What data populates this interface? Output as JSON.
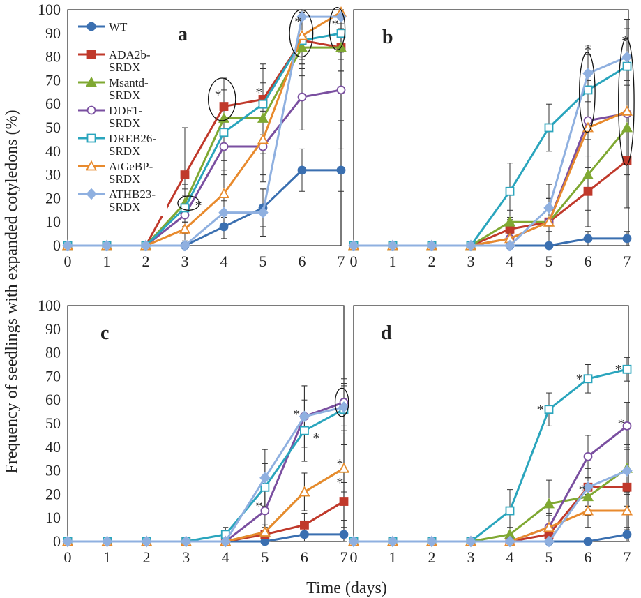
{
  "figure": {
    "ylabel": "Frequency of seedlings with expanded cotyledons (%)",
    "xlabel": "Time (days)"
  },
  "legend": [
    {
      "name": "WT",
      "lines": [
        "WT"
      ],
      "color": "#3a6fb0",
      "marker": "circle-filled"
    },
    {
      "name": "ADA2b-SRDX",
      "lines": [
        "ADA2b-",
        "SRDX"
      ],
      "color": "#c0392b",
      "marker": "square-filled"
    },
    {
      "name": "Msantd-SRDX",
      "lines": [
        "Msantd-",
        "SRDX"
      ],
      "color": "#7fa832",
      "marker": "triangle-filled"
    },
    {
      "name": "DDF1-SRDX",
      "lines": [
        "DDF1-",
        "SRDX"
      ],
      "color": "#7a4fa0",
      "marker": "circle-open"
    },
    {
      "name": "DREB26-SRDX",
      "lines": [
        "DREB26-",
        "SRDX"
      ],
      "color": "#2aa5bd",
      "marker": "square-open"
    },
    {
      "name": "AtGeBP-SRDX",
      "lines": [
        "AtGeBP-",
        "SRDX"
      ],
      "color": "#e88a2d",
      "marker": "triangle-open"
    },
    {
      "name": "ATHB23-SRDX",
      "lines": [
        "ATHB23-",
        "SRDX"
      ],
      "color": "#8fb0e0",
      "marker": "diamond-filled"
    }
  ],
  "chart_data": [
    {
      "panel": "a",
      "type": "line",
      "x": [
        0,
        1,
        2,
        3,
        4,
        5,
        6,
        7
      ],
      "xticks": [
        "0",
        "1",
        "2",
        "3",
        "4",
        "5",
        "6",
        "7"
      ],
      "yticks": [
        "0",
        "10",
        "20",
        "30",
        "40",
        "50",
        "60",
        "70",
        "80",
        "90",
        "100"
      ],
      "ylim": [
        0,
        100
      ],
      "series": [
        {
          "name": "WT",
          "values": [
            0,
            0,
            0,
            0,
            8,
            16,
            32,
            32
          ],
          "err": [
            0,
            0,
            0,
            0,
            5,
            8,
            9,
            9
          ]
        },
        {
          "name": "ADA2b-SRDX",
          "values": [
            0,
            0,
            0,
            30,
            59,
            62,
            87,
            84
          ],
          "err": [
            0,
            0,
            0,
            20,
            12,
            15,
            12,
            10
          ]
        },
        {
          "name": "Msantd-SRDX",
          "values": [
            0,
            0,
            0,
            18,
            54,
            54,
            84,
            84
          ],
          "err": [
            0,
            0,
            0,
            8,
            12,
            15,
            12,
            10
          ]
        },
        {
          "name": "DDF1-SRDX",
          "values": [
            0,
            0,
            0,
            13,
            42,
            42,
            63,
            66
          ],
          "err": [
            0,
            0,
            0,
            8,
            12,
            15,
            14,
            13
          ]
        },
        {
          "name": "DREB26-SRDX",
          "values": [
            0,
            0,
            0,
            16,
            48,
            60,
            87,
            90
          ],
          "err": [
            0,
            0,
            0,
            8,
            12,
            15,
            10,
            8
          ]
        },
        {
          "name": "AtGeBP-SRDX",
          "values": [
            0,
            0,
            0,
            7,
            22,
            45,
            89,
            99
          ],
          "err": [
            0,
            0,
            0,
            5,
            10,
            15,
            10,
            5
          ]
        },
        {
          "name": "ATHB23-SRDX",
          "values": [
            0,
            0,
            0,
            0,
            14,
            14,
            97,
            97
          ],
          "err": [
            0,
            0,
            0,
            0,
            5,
            10,
            8,
            5
          ]
        }
      ],
      "annotations": [
        {
          "text": "*",
          "x": 3.35,
          "y": 18
        },
        {
          "text": "*",
          "x": 3.85,
          "y": 65
        },
        {
          "text": "*",
          "x": 4.9,
          "y": 66
        },
        {
          "text": "*",
          "x": 5.9,
          "y": 96
        },
        {
          "text": "*",
          "x": 6.85,
          "y": 95
        }
      ],
      "ellipses": [
        {
          "cx": 3.1,
          "cy": 18,
          "rx": 0.28,
          "ry": 3
        },
        {
          "cx": 3.95,
          "cy": 62,
          "rx": 0.35,
          "ry": 9
        },
        {
          "cx": 5.98,
          "cy": 90,
          "rx": 0.3,
          "ry": 10
        },
        {
          "cx": 6.9,
          "cy": 92,
          "rx": 0.2,
          "ry": 9
        }
      ]
    },
    {
      "panel": "b",
      "type": "line",
      "x": [
        0,
        1,
        2,
        3,
        4,
        5,
        6,
        7
      ],
      "xticks": [
        "0",
        "1",
        "2",
        "3",
        "4",
        "5",
        "6",
        "7"
      ],
      "ylim": [
        0,
        100
      ],
      "series": [
        {
          "name": "WT",
          "values": [
            0,
            0,
            0,
            0,
            0,
            0,
            3,
            3
          ],
          "err": [
            0,
            0,
            0,
            0,
            0,
            0,
            3,
            3
          ]
        },
        {
          "name": "ADA2b-SRDX",
          "values": [
            0,
            0,
            0,
            0,
            7,
            10,
            23,
            36
          ],
          "err": [
            0,
            0,
            0,
            0,
            5,
            10,
            15,
            20
          ]
        },
        {
          "name": "Msantd-SRDX",
          "values": [
            0,
            0,
            0,
            0,
            10,
            10,
            30,
            50
          ],
          "err": [
            0,
            0,
            0,
            0,
            5,
            10,
            15,
            20
          ]
        },
        {
          "name": "DDF1-SRDX",
          "values": [
            0,
            0,
            0,
            0,
            3,
            10,
            53,
            56
          ],
          "err": [
            0,
            0,
            0,
            0,
            5,
            10,
            20,
            20
          ]
        },
        {
          "name": "DREB26-SRDX",
          "values": [
            0,
            0,
            0,
            0,
            23,
            50,
            66,
            76
          ],
          "err": [
            0,
            0,
            0,
            0,
            12,
            10,
            15,
            20
          ]
        },
        {
          "name": "AtGeBP-SRDX",
          "values": [
            0,
            0,
            0,
            0,
            3,
            10,
            50,
            57
          ],
          "err": [
            0,
            0,
            0,
            0,
            5,
            10,
            20,
            20
          ]
        },
        {
          "name": "ATHB23-SRDX",
          "values": [
            0,
            0,
            0,
            0,
            0,
            16,
            73,
            80
          ],
          "err": [
            0,
            0,
            0,
            0,
            0,
            10,
            12,
            12
          ]
        }
      ],
      "annotations": [
        {
          "text": "*",
          "x": 6.0,
          "y": 84
        },
        {
          "text": "*",
          "x": 6.95,
          "y": 88
        }
      ],
      "ellipses": [
        {
          "cx": 5.98,
          "cy": 65,
          "rx": 0.2,
          "ry": 17
        },
        {
          "cx": 6.98,
          "cy": 61,
          "rx": 0.2,
          "ry": 27
        }
      ]
    },
    {
      "panel": "c",
      "type": "line",
      "x": [
        0,
        1,
        2,
        3,
        4,
        5,
        6,
        7
      ],
      "xticks": [
        "0",
        "1",
        "2",
        "3",
        "4",
        "5",
        "6",
        "7"
      ],
      "yticks": [
        "0",
        "10",
        "20",
        "30",
        "40",
        "50",
        "60",
        "70",
        "80",
        "90",
        "100"
      ],
      "ylim": [
        0,
        100
      ],
      "series": [
        {
          "name": "WT",
          "values": [
            0,
            0,
            0,
            0,
            0,
            0,
            3,
            3
          ],
          "err": [
            0,
            0,
            0,
            0,
            0,
            0,
            3,
            3
          ]
        },
        {
          "name": "ADA2b-SRDX",
          "values": [
            0,
            0,
            0,
            0,
            0,
            3,
            7,
            17
          ],
          "err": [
            0,
            0,
            0,
            0,
            0,
            3,
            5,
            8
          ]
        },
        {
          "name": "Msantd-SRDX",
          "values": [
            0,
            0,
            0,
            0,
            0,
            4,
            21,
            31
          ],
          "err": [
            0,
            0,
            0,
            0,
            0,
            3,
            8,
            10
          ]
        },
        {
          "name": "DDF1-SRDX",
          "values": [
            0,
            0,
            0,
            0,
            0,
            13,
            53,
            59
          ],
          "err": [
            0,
            0,
            0,
            0,
            0,
            10,
            13,
            10
          ]
        },
        {
          "name": "DREB26-SRDX",
          "values": [
            0,
            0,
            0,
            0,
            3,
            23,
            47,
            56
          ],
          "err": [
            0,
            0,
            0,
            0,
            3,
            10,
            13,
            10
          ]
        },
        {
          "name": "AtGeBP-SRDX",
          "values": [
            0,
            0,
            0,
            0,
            0,
            4,
            21,
            31
          ],
          "err": [
            0,
            0,
            0,
            0,
            0,
            3,
            8,
            10
          ]
        },
        {
          "name": "ATHB23-SRDX",
          "values": [
            0,
            0,
            0,
            0,
            0,
            27,
            53,
            57
          ],
          "err": [
            0,
            0,
            0,
            0,
            0,
            12,
            13,
            10
          ]
        }
      ],
      "annotations": [
        {
          "text": "*",
          "x": 4.85,
          "y": 16
        },
        {
          "text": "*",
          "x": 5.8,
          "y": 55
        },
        {
          "text": "*",
          "x": 6.3,
          "y": 45
        },
        {
          "text": "*",
          "x": 6.9,
          "y": 34
        },
        {
          "text": "*",
          "x": 6.9,
          "y": 26
        }
      ],
      "ellipses": [
        {
          "cx": 6.95,
          "cy": 59,
          "rx": 0.17,
          "ry": 6
        }
      ]
    },
    {
      "panel": "d",
      "type": "line",
      "x": [
        0,
        1,
        2,
        3,
        4,
        5,
        6,
        7
      ],
      "xticks": [
        "0",
        "1",
        "2",
        "3",
        "4",
        "5",
        "6",
        "7"
      ],
      "ylim": [
        0,
        100
      ],
      "series": [
        {
          "name": "WT",
          "values": [
            0,
            0,
            0,
            0,
            0,
            0,
            0,
            3
          ],
          "err": [
            0,
            0,
            0,
            0,
            0,
            0,
            0,
            3
          ]
        },
        {
          "name": "ADA2b-SRDX",
          "values": [
            0,
            0,
            0,
            0,
            0,
            3,
            23,
            23
          ],
          "err": [
            0,
            0,
            0,
            0,
            0,
            3,
            8,
            8
          ]
        },
        {
          "name": "Msantd-SRDX",
          "values": [
            0,
            0,
            0,
            0,
            3,
            16,
            19,
            31
          ],
          "err": [
            0,
            0,
            0,
            0,
            3,
            10,
            8,
            10
          ]
        },
        {
          "name": "DDF1-SRDX",
          "values": [
            0,
            0,
            0,
            0,
            0,
            6,
            36,
            49
          ],
          "err": [
            0,
            0,
            0,
            0,
            0,
            6,
            9,
            10
          ]
        },
        {
          "name": "DREB26-SRDX",
          "values": [
            0,
            0,
            0,
            0,
            13,
            56,
            69,
            73
          ],
          "err": [
            0,
            0,
            0,
            0,
            9,
            7,
            6,
            5
          ]
        },
        {
          "name": "AtGeBP-SRDX",
          "values": [
            0,
            0,
            0,
            0,
            0,
            6,
            13,
            13
          ],
          "err": [
            0,
            0,
            0,
            0,
            0,
            5,
            7,
            8
          ]
        },
        {
          "name": "ATHB23-SRDX",
          "values": [
            0,
            0,
            0,
            0,
            0,
            0,
            23,
            30
          ],
          "err": [
            0,
            0,
            0,
            0,
            0,
            0,
            8,
            10
          ]
        }
      ],
      "annotations": [
        {
          "text": "*",
          "x": 4.78,
          "y": 57
        },
        {
          "text": "*",
          "x": 5.78,
          "y": 70
        },
        {
          "text": "*",
          "x": 6.78,
          "y": 74
        },
        {
          "text": "*",
          "x": 6.85,
          "y": 51
        },
        {
          "text": "*",
          "x": 5.85,
          "y": 23
        }
      ],
      "ellipses": []
    }
  ]
}
